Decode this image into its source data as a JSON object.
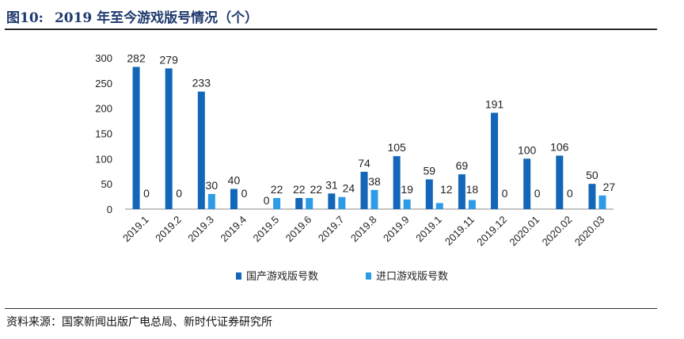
{
  "header": {
    "figure_number": "图10:",
    "title": "2019 年至今游戏版号情况（个）"
  },
  "source": "资料来源：国家新闻出版广电总局、新时代证券研究所",
  "chart_data": {
    "type": "bar",
    "categories": [
      "2019.1",
      "2019.2",
      "2019.3",
      "2019.4",
      "2019.5",
      "2019.6",
      "2019.7",
      "2019.8",
      "2019.9",
      "2019.1",
      "2019.11",
      "2019.12",
      "2020.01",
      "2020.02",
      "2020.03"
    ],
    "series": [
      {
        "name": "国产游戏版号数",
        "color": "#1466b8",
        "values": [
          282,
          279,
          233,
          40,
          0,
          22,
          31,
          74,
          105,
          59,
          69,
          191,
          100,
          106,
          50
        ]
      },
      {
        "name": "进口游戏版号数",
        "color": "#2e9be6",
        "values": [
          0,
          0,
          30,
          0,
          22,
          22,
          24,
          38,
          19,
          12,
          18,
          0,
          0,
          0,
          27
        ]
      }
    ],
    "y_ticks": [
      0,
      50,
      100,
      150,
      200,
      250,
      300
    ],
    "ylim": [
      0,
      300
    ],
    "xlabel": "",
    "ylabel": "",
    "grid": false,
    "legend_position": "bottom",
    "data_labels": true
  }
}
